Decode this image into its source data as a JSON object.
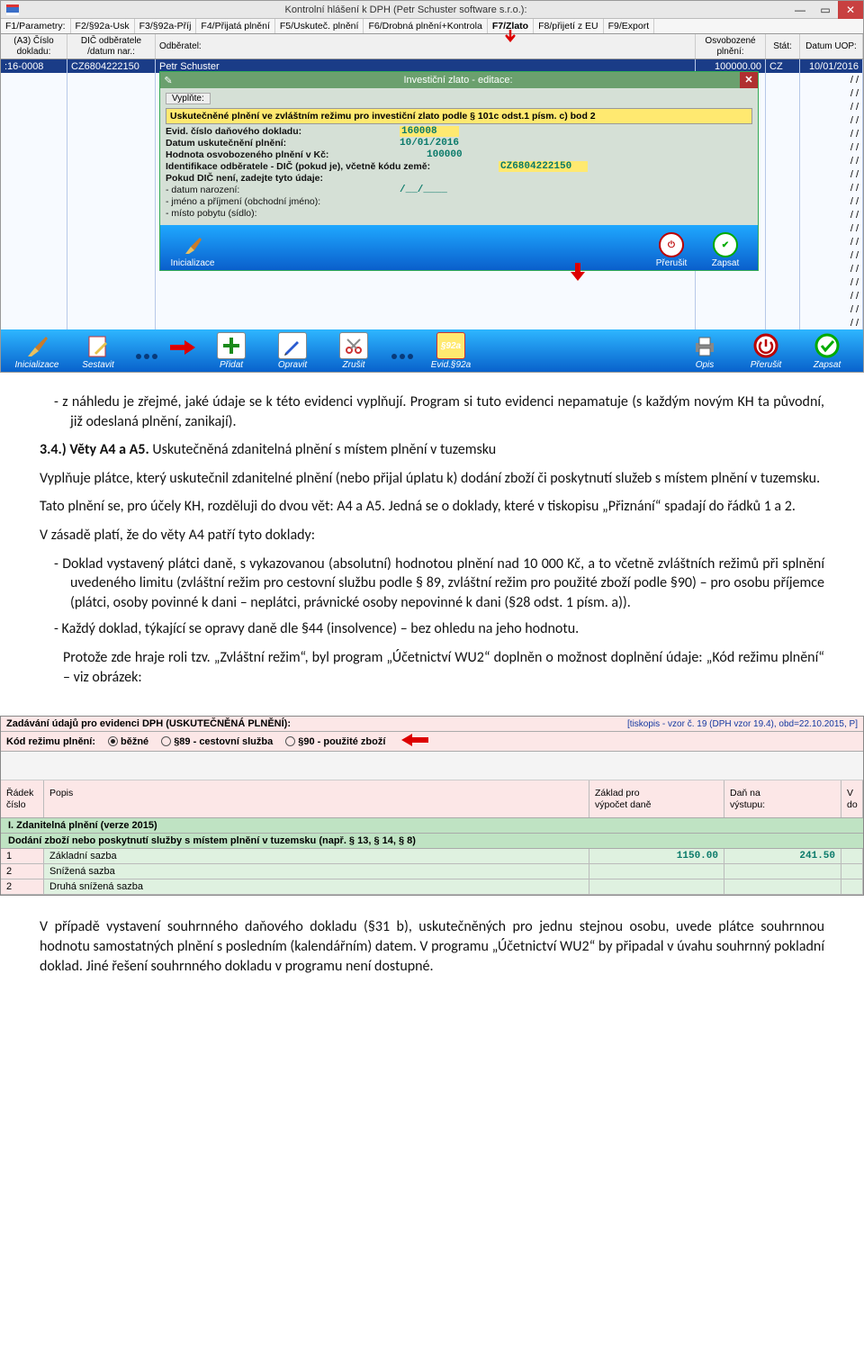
{
  "app": {
    "title": "Kontrolní hlášení k DPH (Petr Schuster software s.r.o.):",
    "ftabs": [
      "F1/Parametry:",
      "F2/§92a-Usk",
      "F3/§92a-Příj",
      "F4/Přijatá plnění",
      "F5/Uskuteč. plnění",
      "F6/Drobná plnění+Kontrola",
      "F7/Zlato",
      "F8/přijetí z EU",
      "F9/Export"
    ],
    "colheads": {
      "c1": "(A3) Číslo\ndokladu:",
      "c2": "DIČ odběratele\n/datum nar.:",
      "c3": "Odběratel:",
      "c4": "Osvobozené\nplnění:",
      "c5": "Stát:",
      "c6": "Datum UOP:"
    },
    "row": {
      "doc_no": ":16-0008",
      "dic": "CZ6804222150",
      "name": "Petr Schuster",
      "amount": "100000.00",
      "state": "CZ",
      "date": "10/01/2016"
    },
    "empty_date": "/  /",
    "dialog": {
      "title": "Investiční zlato - editace:",
      "fill": "Vyplňte:",
      "headline": "Uskutečněné plnění ve zvláštním režimu pro investiční zlato podle § 101c odst.1 písm. c) bod 2",
      "rows": {
        "evid_l": "Evid. číslo daňového dokladu:",
        "evid_v": "160008",
        "date_l": "Datum uskutečnění plnění:",
        "date_v": "10/01/2016",
        "amt_l": "Hodnota osvobozeného plnění v Kč:",
        "amt_v": "100000",
        "id_l": "Identifikace odběratele - DIČ (pokud je), včetně kódu země:",
        "id_v": "CZ6804222150",
        "nodic": "Pokud DIČ není, zadejte tyto údaje:",
        "birth_l": "- datum narození:",
        "birth_v": "/__/____",
        "name_l": "- jméno a příjmení (obchodní jméno):",
        "addr_l": "- místo pobytu (sídlo):"
      },
      "btns": {
        "init": "Inicializace",
        "cancel": "Přerušit",
        "save": "Zapsat"
      }
    },
    "toolbar": {
      "init": "Inicializace",
      "build": "Sestavit",
      "add": "Přidat",
      "edit": "Opravit",
      "del": "Zrušit",
      "s92": "Evid.§92a",
      "s92_badge": "§92a",
      "print": "Opis",
      "cancel": "Přerušit",
      "save": "Zapsat"
    }
  },
  "doc": {
    "p1": "z náhledu je zřejmé, jaké údaje se k této evidenci vyplňují. Program si tuto evidenci nepamatuje (s každým novým KH ta původní, již odeslaná plnění, zanikají).",
    "h34": "3.4.) Věty A4 a A5.",
    "h34b": " Uskutečněná zdanitelná plnění s místem plnění v tuzemsku",
    "p2": "Vyplňuje plátce, který uskutečnil zdanitelné plnění (nebo přijal úplatu k) dodání zboží či poskytnutí služeb s místem plnění v tuzemsku.",
    "p3": "Tato plnění se, pro účely KH, rozděluji do dvou vět: A4 a A5. Jedná se o doklady, které v tiskopisu „Přiznání“ spadají do řádků 1 a 2.",
    "p4": "V zásadě platí, že do věty A4 patří tyto doklady:",
    "li1": "Doklad vystavený plátci daně, s vykazovanou (absolutní) hodnotou plnění nad 10 000 Kč, a to včetně zvláštních režimů při splnění uvedeného limitu (zvláštní režim pro cestovní službu podle § 89, zvláštní režim pro použité zboží podle §90) – pro osobu příjemce (plátci, osoby povinné k dani – neplátci, právnické osoby nepovinné k dani (§28 odst. 1 písm. a)).",
    "li2": "Každý doklad, týkající se opravy daně dle §44 (insolvence) – bez ohledu na jeho hodnotu.",
    "p5": "Protože zde hraje roli tzv. „Zvláštní režim“, byl program „Účetnictví WU2“ doplněn o možnost doplnění údaje: „Kód režimu plnění“ – viz obrázek:",
    "p6": "V případě vystavení souhrnného daňového dokladu (§31 b), uskutečněných pro jednu stejnou osobu, uvede plátce souhrnnou hodnotu samostatných plnění s posledním (kalendářním) datem. V programu „Účetnictví WU2“ by připadal v úvahu souhrnný pokladní doklad. Jiné řešení souhrnného dokladu v programu není dostupné."
  },
  "shot2": {
    "head_left": "Zadávání údajů pro evidenci DPH (USKUTEČNĚNÁ PLNĚNÍ):",
    "head_right": "[tiskopis - vzor č. 19 (DPH vzor 19.4), obd=22.10.2015, P]",
    "sub_label": "Kód režimu plnění:",
    "opts": {
      "a": "běžné",
      "b": "§89 - cestovní služba",
      "c": "§90 - použité zboží"
    },
    "colhead": {
      "c1": "Řádek\nčíslo",
      "c2": "Popis",
      "c3": "Základ pro\nvýpočet daně",
      "c4": "Daň na\nvýstupu:",
      "c5": "V\ndo"
    },
    "sec1": "I. Zdanitelná plnění (verze 2015)",
    "sec2": "Dodání zboží nebo poskytnutí služby s místem plnění v tuzemsku (např. § 13, § 14, § 8)",
    "rows": [
      {
        "n": "1",
        "p": "Základní sazba",
        "z": "1150.00",
        "d": "241.50"
      },
      {
        "n": "2",
        "p": "Snížená sazba",
        "z": "",
        "d": ""
      },
      {
        "n": "2",
        "p": "Druhá snížená sazba",
        "z": "",
        "d": ""
      }
    ]
  },
  "colors": {
    "titlebar_bg": "#e8e8e8",
    "close_bg": "#c84040",
    "sel_row": "#1a3c87",
    "dlg_green": "#6ba06e",
    "yellow": "#ffe970",
    "teal": "#0a7a6a",
    "toolbar_grad_top": "#2eb6ff",
    "toolbar_grad_bot": "#0862cc",
    "pink": "#fce7e7",
    "green_row": "#dff1e0",
    "green_sec": "#bfe3c3"
  }
}
